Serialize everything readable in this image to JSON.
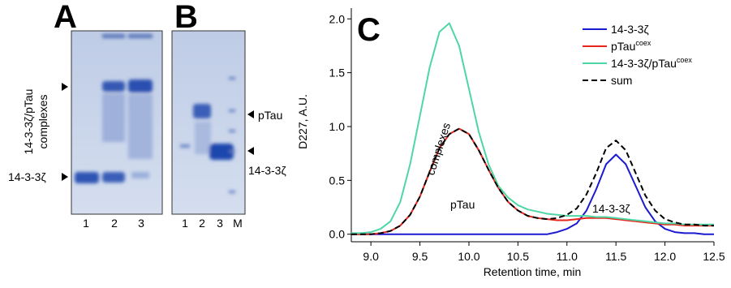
{
  "gel_a": {
    "label": "A",
    "complex_label_lines": [
      "14-3-3ζ/pTau",
      "complexes"
    ],
    "band_label": "14-3-3ζ",
    "lanes": [
      "1",
      "2",
      "3"
    ]
  },
  "gel_b": {
    "label": "B",
    "band_labels": [
      "pTau",
      "14-3-3ζ"
    ],
    "lanes": [
      "1",
      "2",
      "3",
      "M"
    ]
  },
  "chart_data": {
    "type": "line",
    "panel_label": "C",
    "x_label": "Retention time, min",
    "y_label": "D227, A.U.",
    "xlim": [
      8.8,
      12.5
    ],
    "ylim": [
      -0.07,
      2.1
    ],
    "xticks": [
      {
        "value": 9,
        "label": "9.0"
      },
      {
        "value": 9.5,
        "label": "9.5"
      },
      {
        "value": 10,
        "label": "10.0"
      },
      {
        "value": 10.5,
        "label": "10.5"
      },
      {
        "value": 11,
        "label": "11.0"
      },
      {
        "value": 11.5,
        "label": "11.5"
      },
      {
        "value": 12,
        "label": "12.0"
      },
      {
        "value": 12.5,
        "label": "12.5"
      }
    ],
    "yticks": [
      {
        "value": 0,
        "label": "0.0"
      },
      {
        "value": 0.5,
        "label": "0.5"
      },
      {
        "value": 1,
        "label": "1.0"
      },
      {
        "value": 1.5,
        "label": "1.5"
      },
      {
        "value": 2,
        "label": "2.0"
      }
    ],
    "legend": "upper right",
    "annotations": [
      "complexes",
      "pTau",
      "14-3-3ζ"
    ],
    "x": [
      8.8,
      8.9,
      9.0,
      9.1,
      9.2,
      9.3,
      9.4,
      9.5,
      9.6,
      9.7,
      9.8,
      9.9,
      10.0,
      10.1,
      10.2,
      10.3,
      10.4,
      10.5,
      10.6,
      10.7,
      10.8,
      10.9,
      11.0,
      11.1,
      11.2,
      11.3,
      11.4,
      11.5,
      11.6,
      11.7,
      11.8,
      11.9,
      12.0,
      12.1,
      12.2,
      12.3,
      12.4,
      12.5
    ],
    "series": [
      {
        "name": "14-3-3ζ",
        "color": "#1a1ad0",
        "dash": false,
        "values": [
          0,
          0,
          0,
          0,
          0,
          0,
          0,
          0,
          0,
          0,
          0,
          0,
          0,
          0,
          0,
          0,
          0,
          0,
          0,
          0,
          0,
          0.02,
          0.05,
          0.1,
          0.22,
          0.42,
          0.65,
          0.74,
          0.65,
          0.45,
          0.25,
          0.12,
          0.05,
          0.02,
          0.01,
          0.01,
          0,
          0
        ]
      },
      {
        "name": "pTau",
        "name_superscript": "coex",
        "color": "#e8261e",
        "dash": false,
        "values": [
          0,
          0,
          0,
          0.01,
          0.03,
          0.08,
          0.18,
          0.35,
          0.58,
          0.8,
          0.93,
          0.98,
          0.93,
          0.78,
          0.6,
          0.43,
          0.3,
          0.22,
          0.17,
          0.15,
          0.14,
          0.13,
          0.13,
          0.14,
          0.15,
          0.15,
          0.15,
          0.14,
          0.13,
          0.12,
          0.11,
          0.1,
          0.09,
          0.09,
          0.08,
          0.08,
          0.08,
          0.08
        ]
      },
      {
        "name": "14-3-3ζ/pTau",
        "name_superscript": "coex",
        "color": "#4fd6a5",
        "dash": false,
        "values": [
          0.01,
          0.01,
          0.02,
          0.05,
          0.12,
          0.3,
          0.65,
          1.1,
          1.55,
          1.88,
          1.96,
          1.75,
          1.35,
          0.95,
          0.65,
          0.45,
          0.34,
          0.27,
          0.23,
          0.21,
          0.19,
          0.18,
          0.17,
          0.17,
          0.17,
          0.16,
          0.16,
          0.15,
          0.14,
          0.13,
          0.12,
          0.11,
          0.1,
          0.1,
          0.09,
          0.09,
          0.09,
          0.09
        ]
      },
      {
        "name": "sum",
        "color": "#000000",
        "dash": true,
        "values": [
          0,
          0,
          0,
          0.01,
          0.03,
          0.08,
          0.18,
          0.35,
          0.58,
          0.8,
          0.93,
          0.98,
          0.93,
          0.78,
          0.6,
          0.43,
          0.3,
          0.22,
          0.17,
          0.15,
          0.14,
          0.15,
          0.18,
          0.24,
          0.37,
          0.57,
          0.8,
          0.87,
          0.78,
          0.57,
          0.36,
          0.22,
          0.14,
          0.11,
          0.09,
          0.09,
          0.08,
          0.08
        ]
      }
    ]
  }
}
